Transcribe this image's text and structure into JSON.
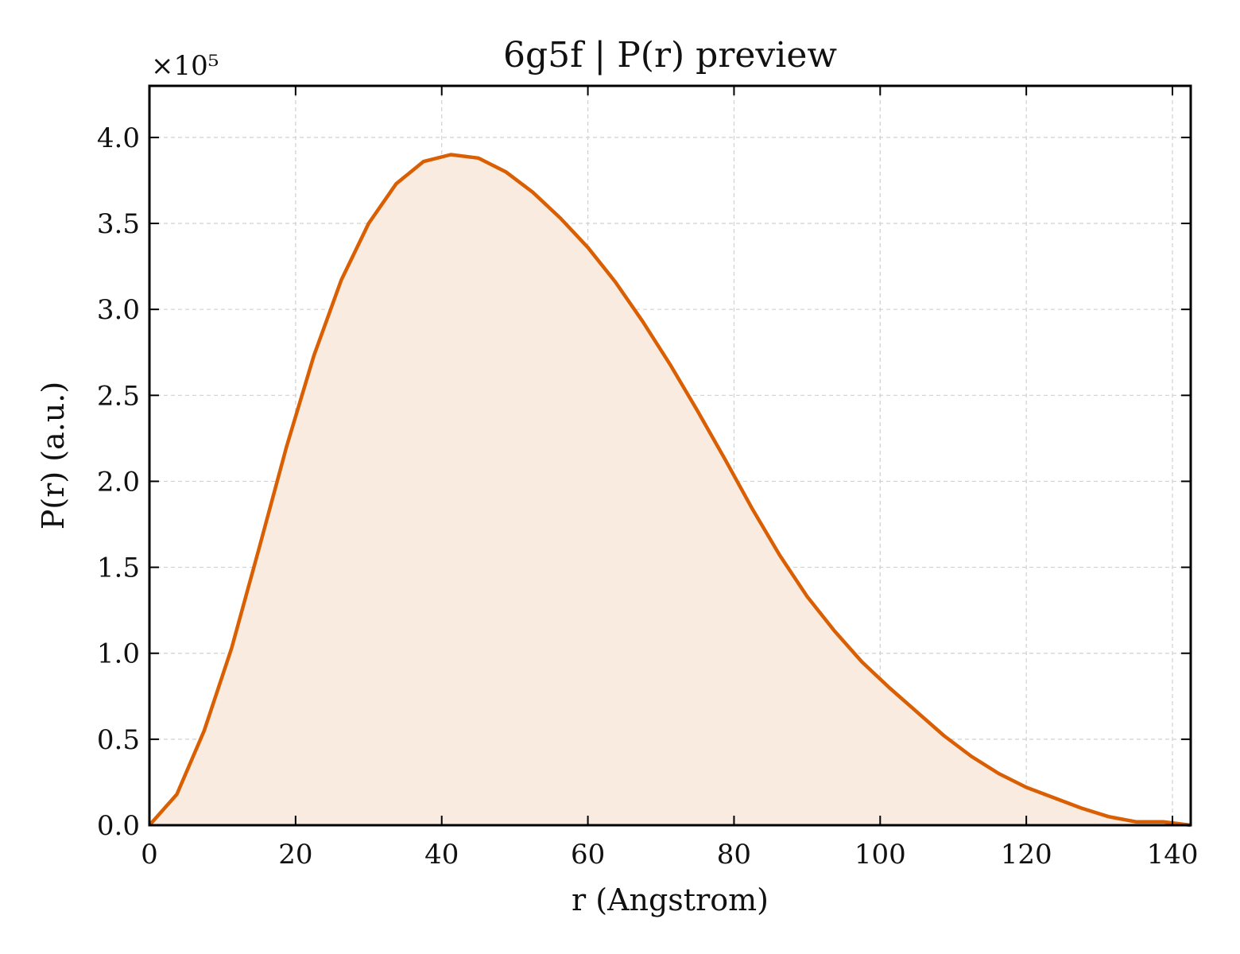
{
  "chart_data": {
    "type": "area",
    "title": "6g5f | P(r) preview",
    "xlabel": "r (Angstrom)",
    "ylabel": "P(r) (a.u.)",
    "y_multiplier_label": "×10⁵",
    "xlim": [
      0,
      142.5
    ],
    "ylim": [
      0,
      4.3
    ],
    "xticks": [
      0,
      20,
      40,
      60,
      80,
      100,
      120,
      140
    ],
    "yticks": [
      0.0,
      0.5,
      1.0,
      1.5,
      2.0,
      2.5,
      3.0,
      3.5,
      4.0
    ],
    "xtick_labels": [
      "0",
      "20",
      "40",
      "60",
      "80",
      "100",
      "120",
      "140"
    ],
    "ytick_labels": [
      "0.0",
      "0.5",
      "1.0",
      "1.5",
      "2.0",
      "2.5",
      "3.0",
      "3.5",
      "4.0"
    ],
    "grid": true,
    "colors": {
      "line": "#d95f02",
      "fill": "#f9ebe0"
    },
    "series": [
      {
        "x": [
          0,
          3.75,
          7.5,
          11.25,
          15,
          18.75,
          22.5,
          26.25,
          30,
          33.75,
          37.5,
          41.25,
          45,
          48.75,
          52.5,
          56.25,
          60,
          63.75,
          67.5,
          71.25,
          75,
          78.75,
          82.5,
          86.25,
          90,
          93.75,
          97.5,
          101.25,
          105,
          108.75,
          112.5,
          116.25,
          120,
          123.75,
          127.5,
          131.25,
          135,
          138.75,
          142.5
        ],
        "y": [
          0.0,
          0.18,
          0.55,
          1.03,
          1.61,
          2.2,
          2.73,
          3.17,
          3.5,
          3.73,
          3.86,
          3.9,
          3.88,
          3.8,
          3.68,
          3.53,
          3.36,
          3.16,
          2.93,
          2.68,
          2.41,
          2.13,
          1.84,
          1.57,
          1.33,
          1.13,
          0.95,
          0.8,
          0.66,
          0.52,
          0.4,
          0.3,
          0.22,
          0.16,
          0.1,
          0.05,
          0.02,
          0.02,
          0.0
        ]
      }
    ]
  }
}
